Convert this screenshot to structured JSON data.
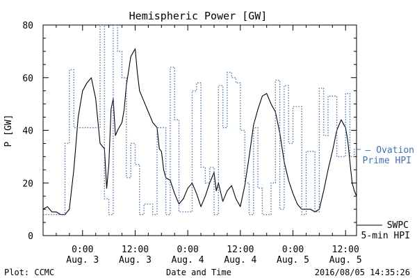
{
  "chart_data": {
    "type": "line",
    "title": "Hemispheric Power [GW]",
    "ylabel": "P [GW]",
    "xlabel": "Date and Time",
    "ylim": [
      0,
      80
    ],
    "yticks": [
      "0",
      "20",
      "40",
      "60",
      "80"
    ],
    "x_ticks": [
      {
        "time": "2016-08-03 00:00",
        "line1": "0:00",
        "line2": "Aug. 3"
      },
      {
        "time": "2016-08-03 12:00",
        "line1": "12:00",
        "line2": "Aug. 3"
      },
      {
        "time": "2016-08-04 00:00",
        "line1": "0:00",
        "line2": "Aug. 4"
      },
      {
        "time": "2016-08-04 12:00",
        "line1": "12:00",
        "line2": "Aug. 4"
      },
      {
        "time": "2016-08-05 00:00",
        "line1": "0:00",
        "line2": "Aug. 5"
      },
      {
        "time": "2016-08-05 12:00",
        "line1": "12:00",
        "line2": "Aug. 5"
      }
    ],
    "x_range": [
      "2016-08-02 15:00",
      "2016-08-05 14:30"
    ],
    "series": [
      {
        "name": "SWPC 5-min HPI",
        "legend_lines": [
          "SWPC",
          "5-min HPI"
        ],
        "color": "#000000",
        "style": "solid",
        "points": [
          [
            "2016-08-02 15:00",
            10
          ],
          [
            "2016-08-02 16:00",
            11
          ],
          [
            "2016-08-02 17:00",
            9
          ],
          [
            "2016-08-02 18:00",
            9
          ],
          [
            "2016-08-02 19:00",
            8
          ],
          [
            "2016-08-02 20:00",
            8
          ],
          [
            "2016-08-02 21:00",
            10
          ],
          [
            "2016-08-02 22:00",
            25
          ],
          [
            "2016-08-02 23:00",
            45
          ],
          [
            "2016-08-03 00:00",
            55
          ],
          [
            "2016-08-03 01:00",
            58
          ],
          [
            "2016-08-03 02:00",
            60
          ],
          [
            "2016-08-03 03:00",
            52
          ],
          [
            "2016-08-03 04:00",
            35
          ],
          [
            "2016-08-03 05:00",
            33
          ],
          [
            "2016-08-03 05:30",
            18
          ],
          [
            "2016-08-03 06:00",
            27
          ],
          [
            "2016-08-03 06:30",
            48
          ],
          [
            "2016-08-03 07:00",
            52
          ],
          [
            "2016-08-03 07:30",
            38
          ],
          [
            "2016-08-03 08:00",
            40
          ],
          [
            "2016-08-03 09:00",
            43
          ],
          [
            "2016-08-03 09:30",
            48
          ],
          [
            "2016-08-03 10:00",
            57
          ],
          [
            "2016-08-03 11:00",
            68
          ],
          [
            "2016-08-03 12:00",
            71
          ],
          [
            "2016-08-03 12:30",
            62
          ],
          [
            "2016-08-03 13:00",
            55
          ],
          [
            "2016-08-03 14:00",
            51
          ],
          [
            "2016-08-03 15:00",
            47
          ],
          [
            "2016-08-03 16:00",
            43
          ],
          [
            "2016-08-03 17:00",
            41
          ],
          [
            "2016-08-03 17:30",
            33
          ],
          [
            "2016-08-03 18:00",
            32
          ],
          [
            "2016-08-03 18:30",
            25
          ],
          [
            "2016-08-03 19:00",
            22
          ],
          [
            "2016-08-03 20:00",
            21
          ],
          [
            "2016-08-03 21:00",
            16
          ],
          [
            "2016-08-03 22:00",
            12
          ],
          [
            "2016-08-03 23:00",
            14
          ],
          [
            "2016-08-04 00:00",
            18
          ],
          [
            "2016-08-04 01:00",
            20
          ],
          [
            "2016-08-04 02:00",
            16
          ],
          [
            "2016-08-04 03:00",
            11
          ],
          [
            "2016-08-04 04:00",
            15
          ],
          [
            "2016-08-04 05:00",
            20
          ],
          [
            "2016-08-04 06:00",
            24
          ],
          [
            "2016-08-04 06:30",
            17
          ],
          [
            "2016-08-04 07:00",
            20
          ],
          [
            "2016-08-04 08:00",
            13
          ],
          [
            "2016-08-04 09:00",
            17
          ],
          [
            "2016-08-04 10:00",
            19
          ],
          [
            "2016-08-04 11:00",
            14
          ],
          [
            "2016-08-04 12:00",
            11
          ],
          [
            "2016-08-04 13:00",
            19
          ],
          [
            "2016-08-04 14:00",
            30
          ],
          [
            "2016-08-04 15:00",
            42
          ],
          [
            "2016-08-04 16:00",
            48
          ],
          [
            "2016-08-04 17:00",
            53
          ],
          [
            "2016-08-04 18:00",
            54
          ],
          [
            "2016-08-04 19:00",
            50
          ],
          [
            "2016-08-04 20:00",
            47
          ],
          [
            "2016-08-04 21:00",
            39
          ],
          [
            "2016-08-04 22:00",
            28
          ],
          [
            "2016-08-04 23:00",
            21
          ],
          [
            "2016-08-05 00:00",
            16
          ],
          [
            "2016-08-05 01:00",
            12
          ],
          [
            "2016-08-05 02:00",
            10
          ],
          [
            "2016-08-05 03:00",
            10
          ],
          [
            "2016-08-05 04:00",
            10
          ],
          [
            "2016-08-05 05:00",
            9
          ],
          [
            "2016-08-05 06:00",
            10
          ],
          [
            "2016-08-05 07:00",
            17
          ],
          [
            "2016-08-05 08:00",
            25
          ],
          [
            "2016-08-05 09:00",
            32
          ],
          [
            "2016-08-05 10:00",
            40
          ],
          [
            "2016-08-05 11:00",
            44
          ],
          [
            "2016-08-05 12:00",
            41
          ],
          [
            "2016-08-05 12:30",
            36
          ],
          [
            "2016-08-05 13:00",
            28
          ],
          [
            "2016-08-05 13:30",
            20
          ],
          [
            "2016-08-05 14:00",
            17
          ],
          [
            "2016-08-05 14:30",
            15
          ]
        ]
      },
      {
        "name": "Ovation Prime HPI",
        "legend_lines": [
          "— Ovation",
          "Prime HPI"
        ],
        "color": "#3a6fd0",
        "style": "dotted-step",
        "points": [
          [
            "2016-08-02 15:00",
            8
          ],
          [
            "2016-08-02 19:00",
            8
          ],
          [
            "2016-08-02 20:00",
            35
          ],
          [
            "2016-08-02 21:00",
            63
          ],
          [
            "2016-08-02 22:00",
            41
          ],
          [
            "2016-08-03 04:00",
            80
          ],
          [
            "2016-08-03 05:00",
            14
          ],
          [
            "2016-08-03 06:00",
            8
          ],
          [
            "2016-08-03 07:00",
            80
          ],
          [
            "2016-08-03 08:00",
            70
          ],
          [
            "2016-08-03 09:00",
            60
          ],
          [
            "2016-08-03 10:00",
            22
          ],
          [
            "2016-08-03 11:00",
            35
          ],
          [
            "2016-08-03 12:00",
            27
          ],
          [
            "2016-08-03 13:00",
            8
          ],
          [
            "2016-08-03 14:00",
            12
          ],
          [
            "2016-08-03 16:00",
            8
          ],
          [
            "2016-08-03 17:00",
            41
          ],
          [
            "2016-08-03 19:00",
            8
          ],
          [
            "2016-08-03 20:00",
            64
          ],
          [
            "2016-08-03 21:00",
            44
          ],
          [
            "2016-08-03 22:00",
            9
          ],
          [
            "2016-08-04 00:00",
            9
          ],
          [
            "2016-08-04 01:00",
            55
          ],
          [
            "2016-08-04 02:00",
            58
          ],
          [
            "2016-08-04 03:00",
            26
          ],
          [
            "2016-08-04 04:00",
            20
          ],
          [
            "2016-08-04 05:00",
            26
          ],
          [
            "2016-08-04 06:00",
            8
          ],
          [
            "2016-08-04 07:00",
            57
          ],
          [
            "2016-08-04 08:00",
            41
          ],
          [
            "2016-08-04 09:00",
            62
          ],
          [
            "2016-08-04 10:00",
            60
          ],
          [
            "2016-08-04 11:00",
            58
          ],
          [
            "2016-08-04 12:00",
            40
          ],
          [
            "2016-08-04 13:00",
            20
          ],
          [
            "2016-08-04 14:00",
            8
          ],
          [
            "2016-08-04 15:00",
            41
          ],
          [
            "2016-08-04 16:00",
            18
          ],
          [
            "2016-08-04 17:00",
            8
          ],
          [
            "2016-08-04 18:00",
            8
          ],
          [
            "2016-08-04 19:00",
            20
          ],
          [
            "2016-08-04 20:00",
            59
          ],
          [
            "2016-08-04 21:00",
            10
          ],
          [
            "2016-08-04 22:00",
            57
          ],
          [
            "2016-08-04 23:00",
            35
          ],
          [
            "2016-08-05 00:00",
            49
          ],
          [
            "2016-08-05 02:00",
            8
          ],
          [
            "2016-08-05 03:00",
            32
          ],
          [
            "2016-08-05 05:00",
            9
          ],
          [
            "2016-08-05 06:00",
            56
          ],
          [
            "2016-08-05 07:00",
            38
          ],
          [
            "2016-08-05 08:00",
            53
          ],
          [
            "2016-08-05 10:00",
            30
          ],
          [
            "2016-08-05 12:00",
            54
          ],
          [
            "2016-08-05 13:00",
            30
          ],
          [
            "2016-08-05 14:00",
            33
          ],
          [
            "2016-08-05 14:30",
            33
          ]
        ]
      }
    ]
  },
  "footer": {
    "left": "Plot: CCMC",
    "center": "Date and Time",
    "right": "2016/08/05 14:35:26"
  },
  "colors": {
    "axis": "#000000",
    "ovation": "#3a6fd0",
    "swpc": "#000000"
  }
}
